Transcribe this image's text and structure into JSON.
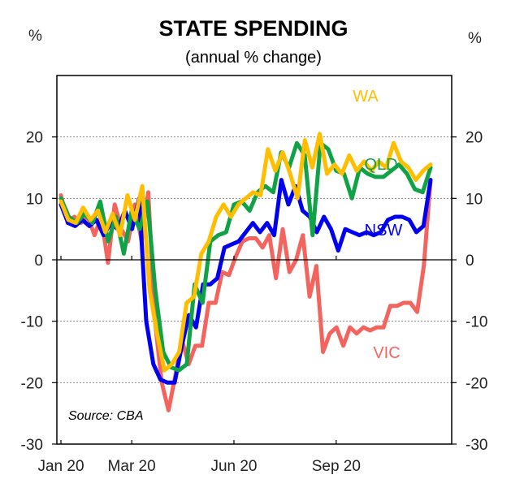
{
  "chart_data": {
    "type": "line",
    "title": "STATE SPENDING",
    "subtitle": "(annual % change)",
    "ylabel_left": "%",
    "ylabel_right": "%",
    "source": "Source: CBA",
    "ylim": [
      -30,
      30
    ],
    "y_ticks": [
      20,
      10,
      0,
      -10,
      -20,
      -30
    ],
    "x_ticks": [
      {
        "label": "Jan 20",
        "week": 0
      },
      {
        "label": "Mar 20",
        "week": 9
      },
      {
        "label": "Jun 20",
        "week": 22
      },
      {
        "label": "Sep 20",
        "week": 35
      }
    ],
    "x_range": [
      0,
      47
    ],
    "series": [
      {
        "name": "VIC",
        "color": "#f4645f",
        "values": [
          10.5,
          6.0,
          7.0,
          6.0,
          7.0,
          4.0,
          7.0,
          -0.5,
          9.0,
          5.0,
          3.0,
          9.0,
          3.0,
          11.0,
          -10.0,
          -20.0,
          -24.5,
          -19.0,
          -13.0,
          -17.0,
          -14.0,
          -14.0,
          -7.0,
          -7.0,
          -2.0,
          -2.5,
          0.5,
          3.0,
          3.5,
          3.5,
          2.0,
          4.0,
          -3.0,
          5.0,
          -2.0,
          0.0,
          4.0,
          -6.0,
          -1.0,
          -15.0,
          -12.0,
          -11.0,
          -14.0,
          -11.0,
          -12.0,
          -11.0,
          -11.5,
          -11.0,
          -11.0,
          -7.5,
          -7.5,
          -7.0,
          -7.0,
          -8.5,
          -1.0,
          13.0
        ]
      },
      {
        "name": "NSW",
        "color": "#0000ee",
        "values": [
          9.0,
          6.0,
          5.5,
          6.5,
          5.5,
          6.5,
          4.0,
          6.0,
          5.0,
          8.0,
          5.0,
          10.0,
          -10.0,
          -17.0,
          -19.5,
          -20.0,
          -20.0,
          -14.0,
          -9.0,
          -11.0,
          -4.0,
          -4.0,
          -3.0,
          2.0,
          2.5,
          3.0,
          4.5,
          6.0,
          4.5,
          6.0,
          4.0,
          13.0,
          9.0,
          12.0,
          8.0,
          7.0,
          4.5,
          7.0,
          5.0,
          1.5,
          5.0,
          4.5,
          4.0,
          4.5,
          4.0,
          4.5,
          6.5,
          7.0,
          7.0,
          6.5,
          4.5,
          5.5,
          13.0
        ]
      },
      {
        "name": "QLD",
        "color": "#10a246",
        "values": [
          10.0,
          7.0,
          6.0,
          7.5,
          6.0,
          9.5,
          3.0,
          7.0,
          1.0,
          8.0,
          5.0,
          9.5,
          -5.0,
          -15.0,
          -17.5,
          -18.0,
          -17.0,
          -4.0,
          -7.0,
          3.0,
          4.0,
          4.5,
          9.0,
          9.5,
          8.0,
          11.0,
          12.0,
          11.0,
          17.5,
          15.0,
          19.0,
          17.0,
          4.0,
          19.0,
          18.0,
          14.5,
          14.0,
          10.0,
          15.0,
          14.0,
          13.5,
          13.5,
          14.5,
          15.5,
          14.0,
          11.5,
          11.0,
          15.0
        ]
      },
      {
        "name": "WA",
        "color": "#ffbe00",
        "values": [
          9.5,
          6.5,
          6.0,
          8.5,
          6.5,
          8.0,
          4.5,
          7.5,
          4.0,
          10.5,
          6.5,
          12.0,
          -5.0,
          -12.0,
          -18.0,
          -17.0,
          -15.0,
          -7.0,
          -6.0,
          1.0,
          3.0,
          7.0,
          9.0,
          7.0,
          9.0,
          10.0,
          11.0,
          10.5,
          18.0,
          14.5,
          17.5,
          14.0,
          10.0,
          19.5,
          15.0,
          20.5,
          14.0,
          15.5,
          14.0,
          17.0,
          14.5,
          16.0,
          14.5,
          16.0,
          15.0,
          19.0,
          16.0,
          15.0,
          13.0,
          14.5,
          15.5
        ]
      }
    ]
  }
}
